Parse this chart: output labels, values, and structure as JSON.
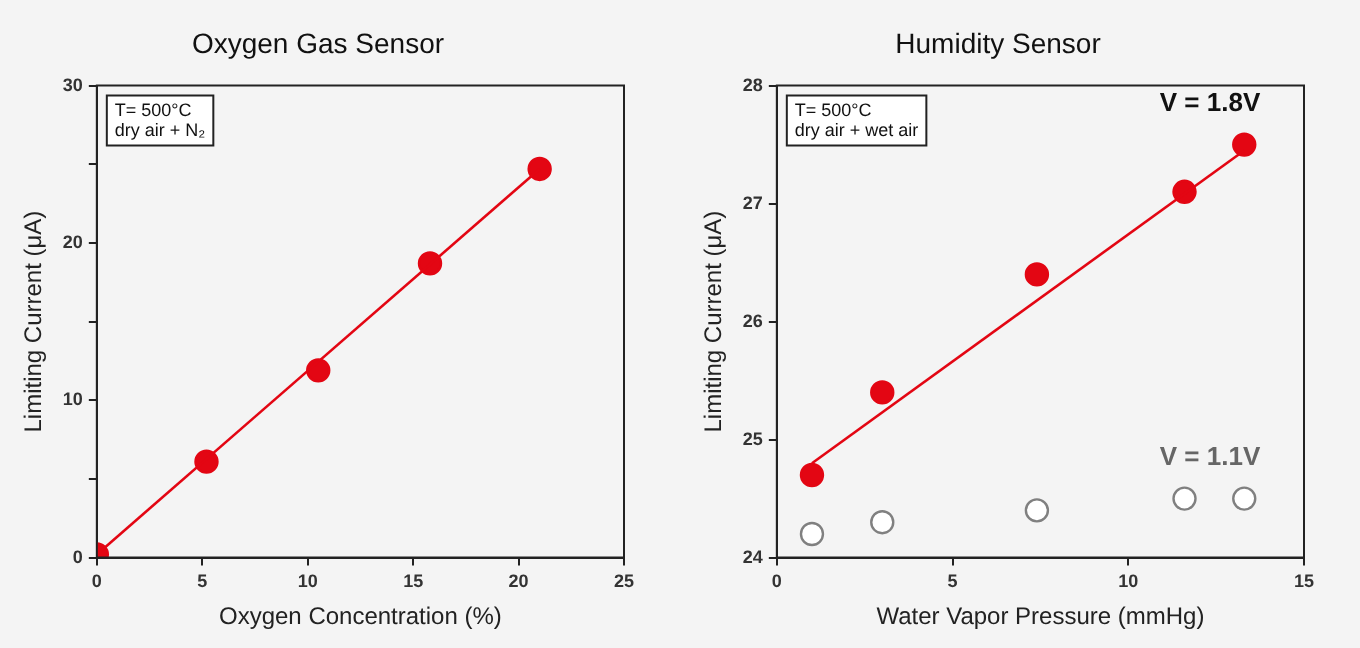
{
  "chart_data": [
    {
      "type": "scatter",
      "title": "Oxygen Gas Sensor",
      "xlabel": "Oxygen Concentration (%)",
      "ylabel": "Limiting Current (μA)",
      "annotations": [
        "T= 500°C",
        "dry air + N₂"
      ],
      "series": [
        {
          "color": "#e30613",
          "marker": "circle",
          "x": [
            0,
            5.2,
            10.5,
            15.8,
            21
          ],
          "values": [
            0.2,
            6.1,
            11.9,
            18.7,
            24.7
          ]
        },
        {
          "type": "line",
          "marker": "none",
          "color": "#e30613",
          "x": [
            0,
            21
          ],
          "values": [
            0.2,
            24.7
          ]
        }
      ],
      "xlim": [
        0,
        25
      ],
      "xticks": [
        0,
        5,
        10,
        15,
        20,
        25
      ],
      "ylim": [
        0,
        30
      ],
      "yticks": [
        0,
        {
          "value": 5,
          "label": null
        },
        10,
        {
          "value": 15,
          "label": null
        },
        20,
        {
          "value": 25,
          "label": null
        },
        30
      ],
      "grid": false,
      "legend": false
    },
    {
      "type": "scatter",
      "title": "Humidity Sensor",
      "xlabel": "Water Vapor Pressure (mmHg)",
      "ylabel": "Limiting Current (μA)",
      "annotations": [
        "T= 500°C",
        "dry air + wet air"
      ],
      "series": [
        {
          "name": "V = 1.8V",
          "marker": "circle",
          "color": "#e30613",
          "x": [
            1,
            3,
            7.4,
            11.6,
            13.3
          ],
          "values": [
            24.7,
            25.4,
            26.4,
            27.1,
            27.5
          ]
        },
        {
          "type": "line",
          "marker": "none",
          "color": "#e30613",
          "x": [
            1,
            13.3
          ],
          "values": [
            24.8,
            27.45
          ]
        },
        {
          "name": "V = 1.1V",
          "marker": "circle",
          "color": "#808080",
          "x": [
            1,
            3,
            7.4,
            11.6,
            13.3
          ],
          "values": [
            24.2,
            24.3,
            24.4,
            24.5,
            24.5
          ]
        }
      ],
      "xlim": [
        0,
        15
      ],
      "xticks": [
        0,
        5,
        10,
        15
      ],
      "ylim": [
        24,
        28
      ],
      "yticks": [
        24,
        25,
        26,
        27,
        28
      ],
      "grid": false,
      "legend": false
    }
  ]
}
